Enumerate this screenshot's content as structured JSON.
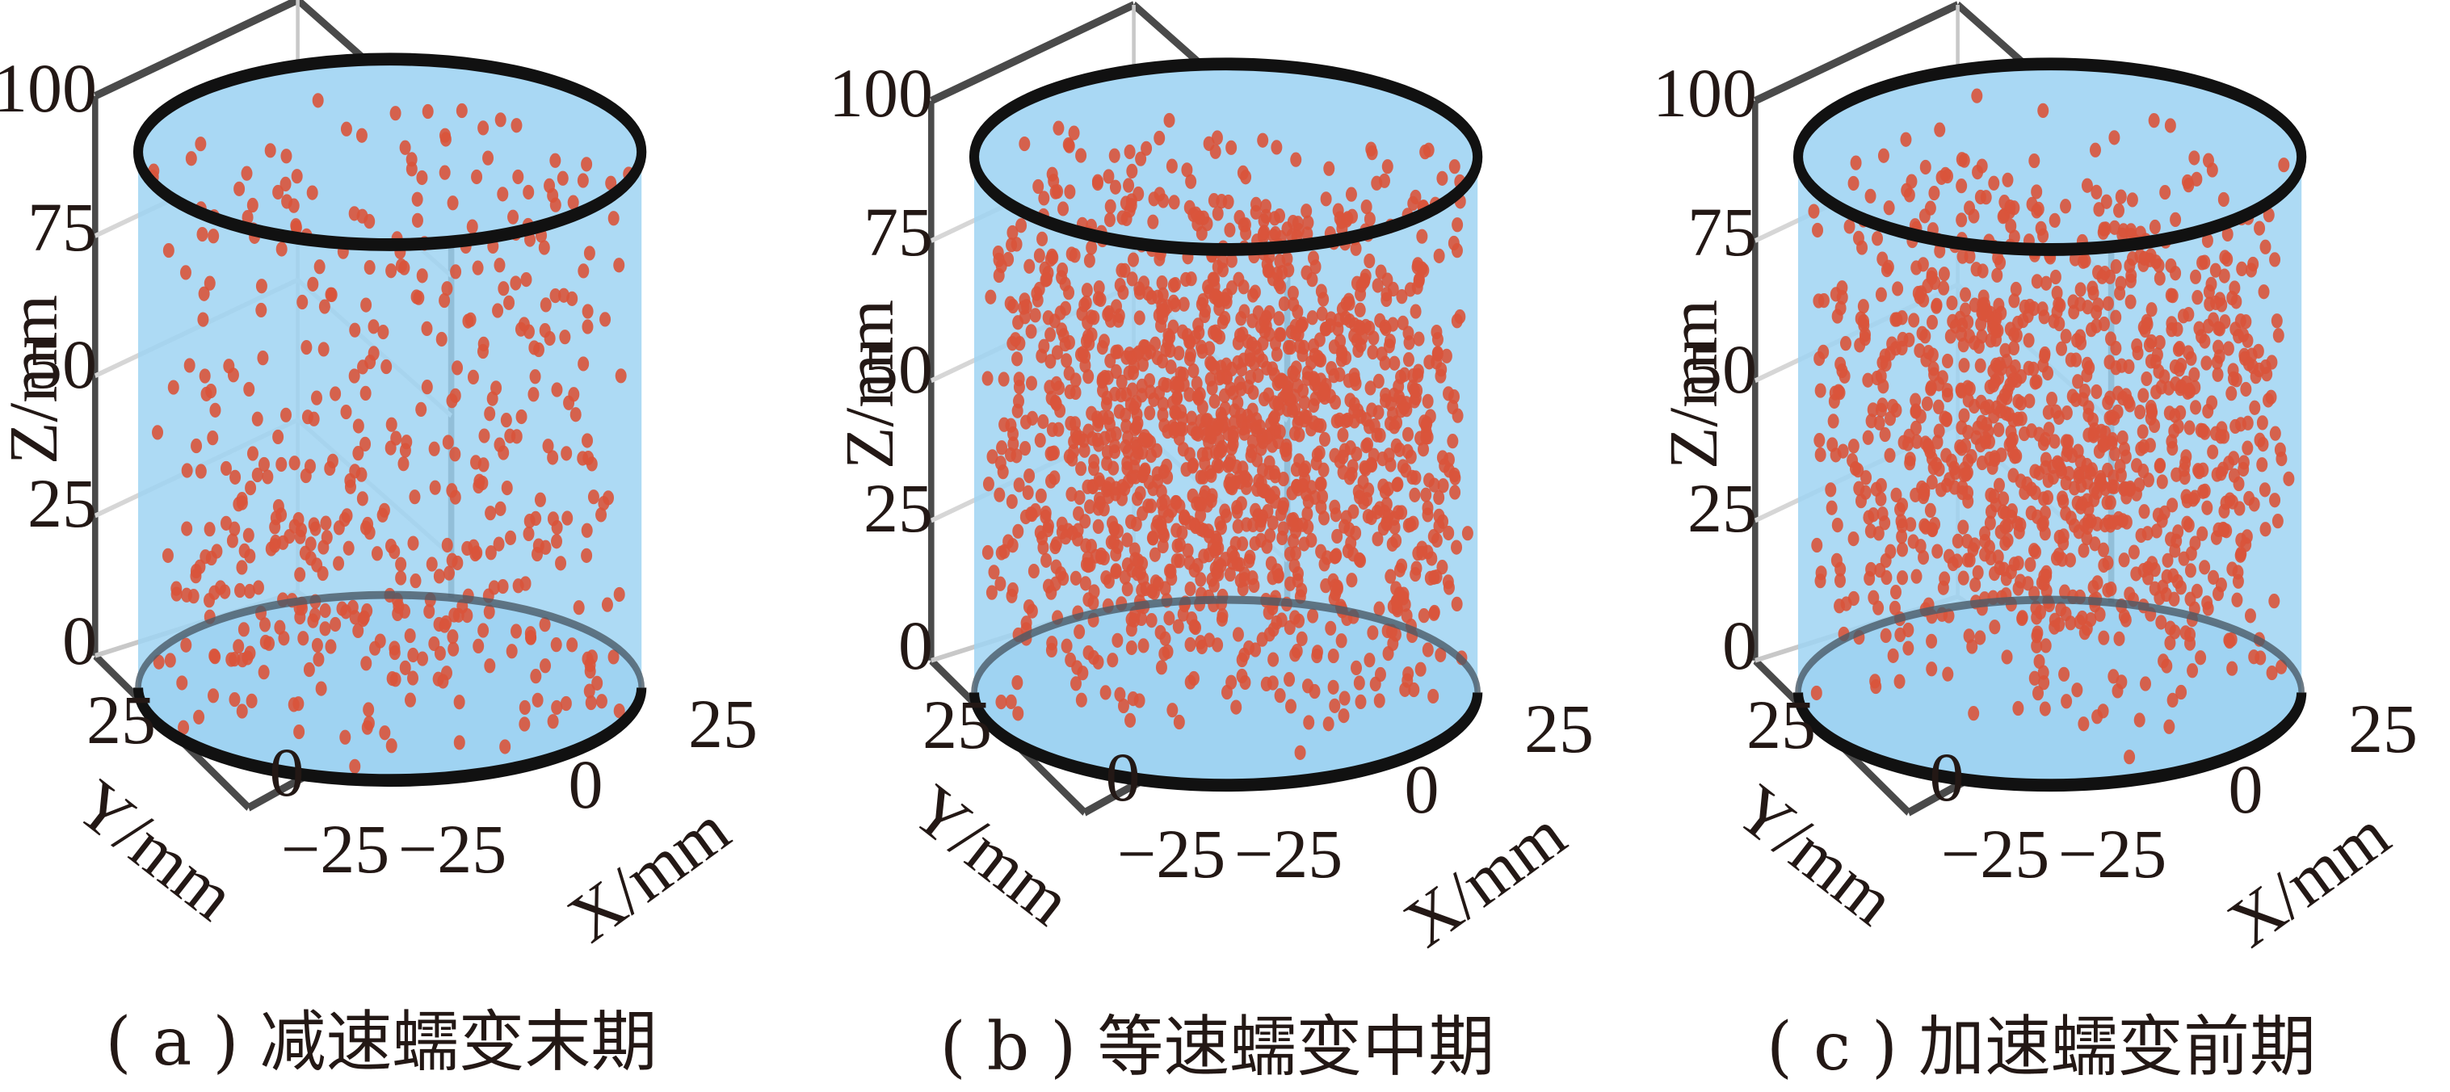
{
  "chart_data": [
    {
      "type": "scatter",
      "caption": "( a ) 减速蠕变末期",
      "zlabel": "Z/mm",
      "xlabel": "X/mm",
      "ylabel": "Y/mm",
      "zticks": [
        "100",
        "75",
        "50",
        "25",
        "0"
      ],
      "xticks": [
        "25",
        "0",
        "−25"
      ],
      "yticks": [
        "25",
        "0",
        "−25"
      ],
      "xlim": [
        -25,
        25
      ],
      "ylim": [
        -25,
        25
      ],
      "zlim": [
        0,
        100
      ],
      "cylinder": {
        "radius": 25,
        "height": 100
      },
      "colors": {
        "cylinder": "#9fd3f2",
        "point": "#d9543b",
        "rim": "#111111"
      },
      "point_count": 480,
      "z_distribution": "sparse, denser near bottom (0–40)",
      "seed": 11
    },
    {
      "type": "scatter",
      "caption": "( b ) 等速蠕变中期",
      "zlabel": "Z/mm",
      "xlabel": "X/mm",
      "ylabel": "Y/mm",
      "zticks": [
        "100",
        "75",
        "50",
        "25",
        "0"
      ],
      "xticks": [
        "25",
        "0",
        "−25"
      ],
      "yticks": [
        "25",
        "0",
        "−25"
      ],
      "xlim": [
        -25,
        25
      ],
      "ylim": [
        -25,
        25
      ],
      "zlim": [
        0,
        100
      ],
      "cylinder": {
        "radius": 25,
        "height": 100
      },
      "colors": {
        "cylinder": "#9fd3f2",
        "point": "#d9543b",
        "rim": "#111111"
      },
      "point_count": 1500,
      "z_distribution": "dense throughout, densest 10–60",
      "seed": 23
    },
    {
      "type": "scatter",
      "caption": "( c ) 加速蠕变前期",
      "zlabel": "Z/mm",
      "xlabel": "X/mm",
      "ylabel": "Y/mm",
      "zticks": [
        "100",
        "75",
        "50",
        "25",
        "0"
      ],
      "xticks": [
        "25",
        "0",
        "−25"
      ],
      "yticks": [
        "25",
        "0",
        "−25"
      ],
      "xlim": [
        -25,
        25
      ],
      "ylim": [
        -25,
        25
      ],
      "zlim": [
        0,
        100
      ],
      "cylinder": {
        "radius": 25,
        "height": 100
      },
      "colors": {
        "cylinder": "#9fd3f2",
        "point": "#d9543b",
        "rim": "#111111"
      },
      "point_count": 1100,
      "z_distribution": "dense, densest 20–60",
      "seed": 37
    }
  ]
}
